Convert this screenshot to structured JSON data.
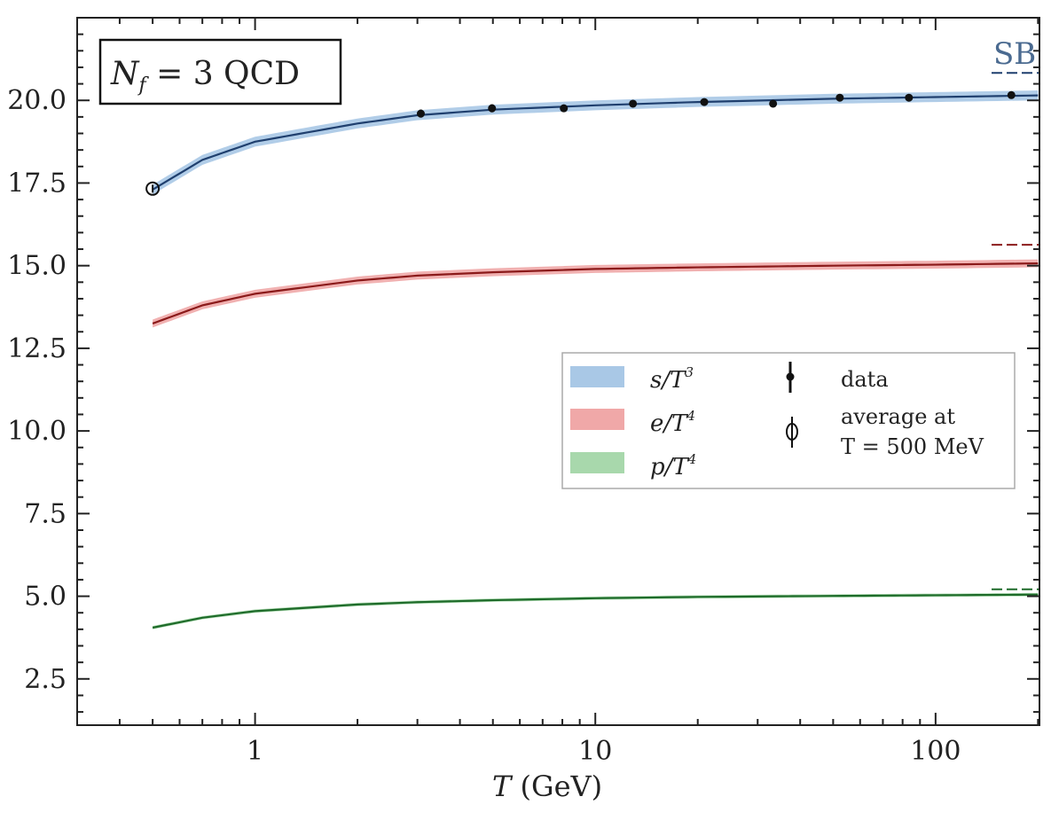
{
  "chart_data": {
    "type": "line",
    "title": "N_f = 3 QCD",
    "title_parts": {
      "N": "N",
      "sub": "f",
      "rest": " = 3 QCD"
    },
    "xlabel": "T (GeV)",
    "xlabel_parts": {
      "T": "T",
      "unit": " (GeV)"
    },
    "ylabel": "",
    "xscale": "log",
    "xlim": [
      0.3,
      202
    ],
    "ylim": [
      1.1,
      22.5
    ],
    "xticks": [
      {
        "v": 1,
        "label": "1"
      },
      {
        "v": 10,
        "label": "10"
      },
      {
        "v": 100,
        "label": "100"
      }
    ],
    "yticks": [
      {
        "v": 2.5,
        "label": "2.5"
      },
      {
        "v": 5,
        "label": "5.0"
      },
      {
        "v": 7.5,
        "label": "7.5"
      },
      {
        "v": 10,
        "label": "10.0"
      },
      {
        "v": 12.5,
        "label": "12.5"
      },
      {
        "v": 15,
        "label": "15.0"
      },
      {
        "v": 17.5,
        "label": "17.5"
      },
      {
        "v": 20,
        "label": "20.0"
      }
    ],
    "series": [
      {
        "name": "s/T^3",
        "label_main": "s/T",
        "label_exp": "3",
        "color": "#1f3f6e",
        "band_color": "#a9c8e6",
        "band": 0.15,
        "x": [
          0.5,
          0.7,
          1,
          2,
          3,
          5,
          10,
          20,
          50,
          100,
          200
        ],
        "y": [
          17.3,
          18.2,
          18.75,
          19.3,
          19.55,
          19.72,
          19.85,
          19.95,
          20.05,
          20.1,
          20.15
        ],
        "sb_limit": 20.83
      },
      {
        "name": "e/T^4",
        "label_main": "e/T",
        "label_exp": "4",
        "color": "#8b1a1a",
        "band_color": "#f0a8a8",
        "band": 0.12,
        "x": [
          0.5,
          0.7,
          1,
          2,
          3,
          5,
          10,
          20,
          50,
          100,
          200
        ],
        "y": [
          13.25,
          13.8,
          14.15,
          14.55,
          14.7,
          14.8,
          14.9,
          14.95,
          15.0,
          15.03,
          15.07
        ],
        "sb_limit": 15.63
      },
      {
        "name": "p/T^4",
        "label_main": "p/T",
        "label_exp": "4",
        "color": "#1e6b2a",
        "band_color": "#a8d8ac",
        "band": 0.05,
        "x": [
          0.5,
          0.7,
          1,
          2,
          3,
          5,
          10,
          20,
          50,
          100,
          200
        ],
        "y": [
          4.05,
          4.35,
          4.55,
          4.75,
          4.82,
          4.88,
          4.94,
          4.98,
          5.01,
          5.03,
          5.05
        ],
        "sb_limit": 5.21
      }
    ],
    "data_points": {
      "label": "data",
      "x": [
        3.07,
        4.97,
        8.08,
        12.9,
        20.9,
        33.3,
        52.3,
        83.5,
        167
      ],
      "y": [
        19.6,
        19.76,
        19.76,
        19.9,
        19.95,
        19.9,
        20.08,
        20.08,
        20.16
      ],
      "err": [
        0.12,
        0.12,
        0.08,
        0.08,
        0.06,
        0.06,
        0.05,
        0.05,
        0.05
      ]
    },
    "average_point": {
      "label_line1": "average at",
      "label_line2": "T = 500 MeV",
      "x": 0.5,
      "y": 17.33,
      "err": 0.12
    },
    "annotation_sb": "SB",
    "legend_position": "center-right"
  }
}
